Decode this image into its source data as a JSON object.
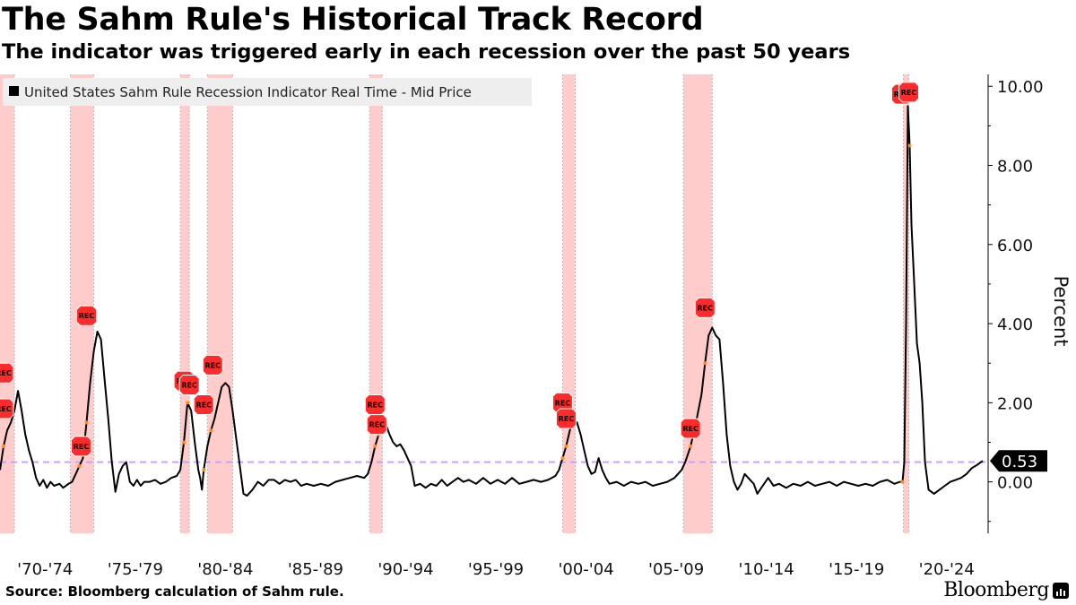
{
  "header": {
    "title": "The Sahm Rule's Historical Track Record",
    "subtitle": "The indicator was triggered early in each recession over the past 50 years"
  },
  "footer": {
    "source": "Source: Bloomberg calculation of Sahm rule.",
    "brand": "Bloomberg"
  },
  "colors": {
    "line": "#000000",
    "recession_band": "#ffcccc",
    "threshold": "#c79cff",
    "marker_fill": "#ff2a2a",
    "axis": "#000000"
  },
  "chart_data": {
    "type": "line",
    "ylabel": "Percent",
    "ylim": [
      -1.3,
      10.3
    ],
    "yticks": [
      0,
      2,
      4,
      6,
      8,
      10
    ],
    "ytick_labels": [
      "0.00",
      "2.00",
      "4.00",
      "6.00",
      "8.00",
      "10.00"
    ],
    "xlim": [
      1970.0,
      2024.8
    ],
    "xtick_labels": [
      "'70-'74",
      "'75-'79",
      "'80-'84",
      "'85-'89",
      "'90-'94",
      "'95-'99",
      "'00-'04",
      "'05-'09",
      "'10-'14",
      "'15-'19",
      "'20-'24"
    ],
    "xtick_groups": [
      [
        1970,
        1974
      ],
      [
        1975,
        1979
      ],
      [
        1980,
        1984
      ],
      [
        1985,
        1989
      ],
      [
        1990,
        1994
      ],
      [
        1995,
        1999
      ],
      [
        2000,
        2004
      ],
      [
        2005,
        2009
      ],
      [
        2010,
        2014
      ],
      [
        2015,
        2019
      ],
      [
        2020,
        2024
      ]
    ],
    "legend": "United States Sahm Rule Recession Indicator Real Time - Mid Price",
    "last_value_label": "0.53",
    "last_value": 0.53,
    "threshold": 0.5,
    "recessions": [
      [
        1969.9,
        1970.8
      ],
      [
        1973.9,
        1975.2
      ],
      [
        1980.0,
        1980.5
      ],
      [
        1981.5,
        1982.9
      ],
      [
        1990.5,
        1991.2
      ],
      [
        2001.2,
        2001.9
      ],
      [
        2007.9,
        2009.5
      ],
      [
        2020.1,
        2020.4
      ]
    ],
    "markers": [
      {
        "label": "REC",
        "x": 1970.2,
        "y": 2.75
      },
      {
        "label": "REC",
        "x": 1970.2,
        "y": 1.85
      },
      {
        "label": "REC",
        "x": 1974.5,
        "y": 0.9
      },
      {
        "label": "REC",
        "x": 1974.8,
        "y": 4.2
      },
      {
        "label": "REC",
        "x": 1980.2,
        "y": 2.55
      },
      {
        "label": "REC",
        "x": 1980.5,
        "y": 2.45
      },
      {
        "label": "REC",
        "x": 1981.3,
        "y": 1.95
      },
      {
        "label": "REC",
        "x": 1981.8,
        "y": 2.95
      },
      {
        "label": "REC",
        "x": 1990.8,
        "y": 1.95
      },
      {
        "label": "REC",
        "x": 1990.9,
        "y": 1.45
      },
      {
        "label": "REC",
        "x": 2001.2,
        "y": 2.0
      },
      {
        "label": "REC",
        "x": 2001.4,
        "y": 1.6
      },
      {
        "label": "REC",
        "x": 2008.3,
        "y": 1.35
      },
      {
        "label": "REC",
        "x": 2009.1,
        "y": 4.4
      },
      {
        "label": "REC",
        "x": 2020.0,
        "y": 9.8
      },
      {
        "label": "REC",
        "x": 2020.4,
        "y": 9.85
      }
    ],
    "series": [
      {
        "name": "United States Sahm Rule Recession Indicator Real Time - Mid Price",
        "points": [
          [
            1970.0,
            0.3
          ],
          [
            1970.2,
            0.9
          ],
          [
            1970.4,
            1.3
          ],
          [
            1970.6,
            1.5
          ],
          [
            1970.8,
            1.8
          ],
          [
            1971.0,
            2.3
          ],
          [
            1971.2,
            1.8
          ],
          [
            1971.4,
            1.2
          ],
          [
            1971.6,
            0.8
          ],
          [
            1971.8,
            0.5
          ],
          [
            1972.0,
            0.1
          ],
          [
            1972.2,
            -0.1
          ],
          [
            1972.4,
            0.05
          ],
          [
            1972.6,
            -0.15
          ],
          [
            1972.8,
            0.0
          ],
          [
            1973.0,
            -0.1
          ],
          [
            1973.3,
            -0.05
          ],
          [
            1973.5,
            -0.15
          ],
          [
            1973.8,
            -0.05
          ],
          [
            1974.0,
            0.0
          ],
          [
            1974.2,
            0.2
          ],
          [
            1974.4,
            0.4
          ],
          [
            1974.6,
            0.6
          ],
          [
            1974.8,
            1.5
          ],
          [
            1975.0,
            2.5
          ],
          [
            1975.2,
            3.3
          ],
          [
            1975.4,
            3.8
          ],
          [
            1975.6,
            3.6
          ],
          [
            1975.8,
            2.6
          ],
          [
            1976.0,
            1.6
          ],
          [
            1976.2,
            0.5
          ],
          [
            1976.4,
            -0.25
          ],
          [
            1976.6,
            0.2
          ],
          [
            1976.8,
            0.4
          ],
          [
            1977.0,
            0.5
          ],
          [
            1977.2,
            0.0
          ],
          [
            1977.4,
            -0.1
          ],
          [
            1977.6,
            0.05
          ],
          [
            1977.8,
            -0.1
          ],
          [
            1978.0,
            0.0
          ],
          [
            1978.3,
            0.0
          ],
          [
            1978.6,
            0.05
          ],
          [
            1978.9,
            -0.05
          ],
          [
            1979.2,
            0.0
          ],
          [
            1979.5,
            0.1
          ],
          [
            1979.8,
            0.15
          ],
          [
            1980.0,
            0.3
          ],
          [
            1980.2,
            1.0
          ],
          [
            1980.4,
            2.0
          ],
          [
            1980.6,
            1.8
          ],
          [
            1980.8,
            1.0
          ],
          [
            1981.0,
            0.3
          ],
          [
            1981.1,
            0.1
          ],
          [
            1981.2,
            -0.2
          ],
          [
            1981.3,
            0.3
          ],
          [
            1981.5,
            0.9
          ],
          [
            1981.7,
            1.3
          ],
          [
            1981.9,
            1.6
          ],
          [
            1982.1,
            2.0
          ],
          [
            1982.3,
            2.4
          ],
          [
            1982.5,
            2.5
          ],
          [
            1982.7,
            2.4
          ],
          [
            1982.9,
            1.8
          ],
          [
            1983.1,
            1.1
          ],
          [
            1983.3,
            0.4
          ],
          [
            1983.5,
            -0.3
          ],
          [
            1983.7,
            -0.35
          ],
          [
            1984.0,
            -0.2
          ],
          [
            1984.3,
            0.0
          ],
          [
            1984.6,
            -0.1
          ],
          [
            1984.9,
            0.05
          ],
          [
            1985.2,
            0.05
          ],
          [
            1985.5,
            -0.05
          ],
          [
            1985.8,
            0.05
          ],
          [
            1986.1,
            0.0
          ],
          [
            1986.4,
            0.05
          ],
          [
            1986.7,
            -0.1
          ],
          [
            1987.0,
            -0.05
          ],
          [
            1987.4,
            -0.1
          ],
          [
            1987.8,
            -0.05
          ],
          [
            1988.2,
            -0.1
          ],
          [
            1988.6,
            0.0
          ],
          [
            1989.0,
            0.05
          ],
          [
            1989.4,
            0.1
          ],
          [
            1989.8,
            0.15
          ],
          [
            1990.2,
            0.1
          ],
          [
            1990.4,
            0.2
          ],
          [
            1990.6,
            0.5
          ],
          [
            1990.8,
            0.9
          ],
          [
            1991.0,
            1.2
          ],
          [
            1991.2,
            1.5
          ],
          [
            1991.4,
            1.45
          ],
          [
            1991.6,
            1.2
          ],
          [
            1991.8,
            1.0
          ],
          [
            1992.0,
            0.9
          ],
          [
            1992.2,
            0.95
          ],
          [
            1992.4,
            0.8
          ],
          [
            1992.6,
            0.6
          ],
          [
            1992.8,
            0.4
          ],
          [
            1993.0,
            -0.1
          ],
          [
            1993.3,
            -0.05
          ],
          [
            1993.6,
            -0.15
          ],
          [
            1993.9,
            -0.05
          ],
          [
            1994.2,
            -0.1
          ],
          [
            1994.5,
            0.05
          ],
          [
            1994.8,
            -0.1
          ],
          [
            1995.1,
            0.0
          ],
          [
            1995.4,
            0.1
          ],
          [
            1995.7,
            0.0
          ],
          [
            1996.0,
            0.05
          ],
          [
            1996.4,
            -0.05
          ],
          [
            1996.8,
            0.1
          ],
          [
            1997.2,
            -0.05
          ],
          [
            1997.6,
            0.05
          ],
          [
            1998.0,
            -0.05
          ],
          [
            1998.4,
            0.1
          ],
          [
            1998.8,
            -0.05
          ],
          [
            1999.2,
            0.0
          ],
          [
            1999.6,
            0.05
          ],
          [
            2000.0,
            0.0
          ],
          [
            2000.4,
            0.05
          ],
          [
            2000.8,
            0.15
          ],
          [
            2001.0,
            0.3
          ],
          [
            2001.2,
            0.6
          ],
          [
            2001.4,
            0.9
          ],
          [
            2001.6,
            1.3
          ],
          [
            2001.8,
            1.55
          ],
          [
            2002.0,
            1.5
          ],
          [
            2002.2,
            1.2
          ],
          [
            2002.4,
            0.8
          ],
          [
            2002.6,
            0.4
          ],
          [
            2002.8,
            0.2
          ],
          [
            2003.0,
            0.25
          ],
          [
            2003.2,
            0.6
          ],
          [
            2003.4,
            0.3
          ],
          [
            2003.6,
            0.1
          ],
          [
            2003.8,
            -0.05
          ],
          [
            2004.2,
            0.0
          ],
          [
            2004.6,
            -0.1
          ],
          [
            2005.0,
            0.0
          ],
          [
            2005.4,
            -0.05
          ],
          [
            2005.8,
            0.0
          ],
          [
            2006.2,
            -0.1
          ],
          [
            2006.6,
            -0.05
          ],
          [
            2007.0,
            0.0
          ],
          [
            2007.4,
            0.1
          ],
          [
            2007.8,
            0.3
          ],
          [
            2008.0,
            0.5
          ],
          [
            2008.3,
            0.9
          ],
          [
            2008.6,
            1.5
          ],
          [
            2008.9,
            2.2
          ],
          [
            2009.1,
            3.0
          ],
          [
            2009.3,
            3.7
          ],
          [
            2009.5,
            3.9
          ],
          [
            2009.7,
            3.7
          ],
          [
            2009.9,
            3.6
          ],
          [
            2010.1,
            2.5
          ],
          [
            2010.3,
            1.2
          ],
          [
            2010.5,
            0.4
          ],
          [
            2010.7,
            0.0
          ],
          [
            2010.9,
            -0.2
          ],
          [
            2011.1,
            -0.05
          ],
          [
            2011.3,
            0.2
          ],
          [
            2011.5,
            0.1
          ],
          [
            2011.8,
            -0.05
          ],
          [
            2012.0,
            -0.3
          ],
          [
            2012.3,
            -0.1
          ],
          [
            2012.6,
            0.1
          ],
          [
            2012.9,
            -0.1
          ],
          [
            2013.2,
            -0.05
          ],
          [
            2013.6,
            -0.15
          ],
          [
            2014.0,
            -0.05
          ],
          [
            2014.4,
            -0.1
          ],
          [
            2014.8,
            0.0
          ],
          [
            2015.2,
            -0.1
          ],
          [
            2015.6,
            -0.05
          ],
          [
            2016.0,
            0.0
          ],
          [
            2016.4,
            -0.1
          ],
          [
            2016.8,
            0.0
          ],
          [
            2017.2,
            -0.05
          ],
          [
            2017.6,
            -0.1
          ],
          [
            2018.0,
            -0.05
          ],
          [
            2018.4,
            -0.1
          ],
          [
            2018.8,
            0.0
          ],
          [
            2019.2,
            0.05
          ],
          [
            2019.6,
            -0.05
          ],
          [
            2019.9,
            0.0
          ],
          [
            2020.05,
            0.0
          ],
          [
            2020.15,
            0.5
          ],
          [
            2020.25,
            4.0
          ],
          [
            2020.35,
            9.5
          ],
          [
            2020.45,
            8.5
          ],
          [
            2020.55,
            6.5
          ],
          [
            2020.7,
            5.0
          ],
          [
            2020.85,
            3.5
          ],
          [
            2021.0,
            3.0
          ],
          [
            2021.15,
            2.0
          ],
          [
            2021.3,
            0.5
          ],
          [
            2021.5,
            -0.2
          ],
          [
            2021.8,
            -0.3
          ],
          [
            2022.1,
            -0.2
          ],
          [
            2022.4,
            -0.1
          ],
          [
            2022.7,
            0.0
          ],
          [
            2023.0,
            0.05
          ],
          [
            2023.3,
            0.1
          ],
          [
            2023.6,
            0.2
          ],
          [
            2023.9,
            0.35
          ],
          [
            2024.2,
            0.43
          ],
          [
            2024.5,
            0.53
          ]
        ]
      }
    ]
  }
}
